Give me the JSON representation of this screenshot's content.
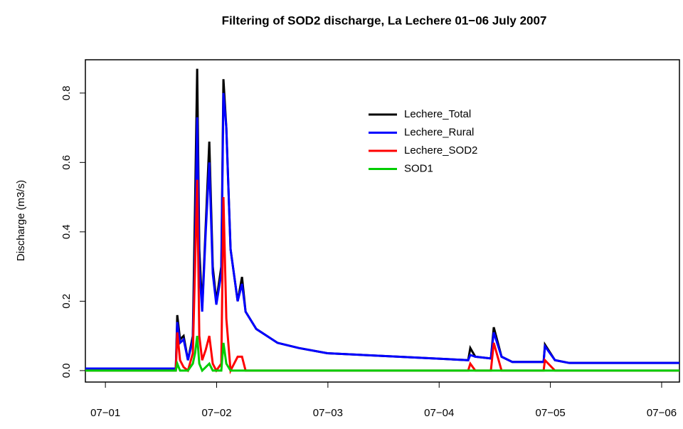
{
  "chart_data": {
    "type": "line",
    "title": "Filtering of SOD2 discharge, La Lechere 01−06 July 2007",
    "y_label": "Discharge (m3/s)",
    "x": [
      -0.18,
      0.633,
      0.646,
      0.671,
      0.703,
      0.742,
      0.786,
      0.806,
      0.825,
      0.844,
      0.87,
      0.902,
      0.934,
      0.965,
      0.997,
      1.042,
      1.061,
      1.087,
      1.125,
      1.189,
      1.228,
      1.26,
      1.356,
      1.547,
      1.739,
      1.995,
      2.634,
      3.261,
      3.28,
      3.325,
      3.465,
      3.491,
      3.561,
      3.657,
      3.939,
      3.951,
      4.041,
      4.169,
      5.16
    ],
    "series": [
      {
        "name": "Lechere_Total",
        "color": "#000000",
        "values": [
          0.006,
          0.006,
          0.16,
          0.09,
          0.1,
          0.03,
          0.1,
          0.48,
          0.87,
          0.35,
          0.18,
          0.42,
          0.66,
          0.3,
          0.2,
          0.3,
          0.84,
          0.7,
          0.35,
          0.2,
          0.27,
          0.17,
          0.12,
          0.08,
          0.065,
          0.05,
          0.04,
          0.03,
          0.065,
          0.04,
          0.035,
          0.125,
          0.04,
          0.025,
          0.025,
          0.075,
          0.03,
          0.022,
          0.022
        ]
      },
      {
        "name": "Lechere_Rural",
        "color": "#0000ff",
        "values": [
          0.006,
          0.006,
          0.14,
          0.08,
          0.09,
          0.03,
          0.09,
          0.35,
          0.73,
          0.3,
          0.17,
          0.4,
          0.6,
          0.28,
          0.19,
          0.28,
          0.8,
          0.7,
          0.35,
          0.2,
          0.25,
          0.17,
          0.12,
          0.08,
          0.065,
          0.05,
          0.04,
          0.03,
          0.045,
          0.04,
          0.035,
          0.11,
          0.04,
          0.025,
          0.025,
          0.07,
          0.03,
          0.022,
          0.022
        ]
      },
      {
        "name": "Lechere_SOD2",
        "color": "#ff0000",
        "values": [
          0,
          0,
          0.11,
          0.03,
          0.01,
          0,
          0.05,
          0.3,
          0.55,
          0.1,
          0.03,
          0.06,
          0.1,
          0.02,
          0,
          0.02,
          0.5,
          0.15,
          0,
          0.04,
          0.04,
          0,
          0,
          0,
          0,
          0,
          0,
          0,
          0.02,
          0,
          0,
          0.08,
          0,
          0,
          0,
          0.03,
          0,
          0,
          0
        ]
      },
      {
        "name": "SOD1",
        "color": "#00cd00",
        "values": [
          0,
          0,
          0.02,
          0,
          0,
          0,
          0.02,
          0.05,
          0.1,
          0.02,
          0,
          0.01,
          0.02,
          0,
          0,
          0,
          0.08,
          0.02,
          0,
          0,
          0,
          0,
          0,
          0,
          0,
          0,
          0,
          0,
          0,
          0,
          0,
          0,
          0,
          0,
          0,
          0,
          0,
          0,
          0
        ]
      }
    ],
    "xlim": [
      -0.18,
      5.16
    ],
    "xticks": [
      {
        "value": 0,
        "label": "07−01"
      },
      {
        "value": 1,
        "label": "07−02"
      },
      {
        "value": 2,
        "label": "07−03"
      },
      {
        "value": 3,
        "label": "07−04"
      },
      {
        "value": 4,
        "label": "07−05"
      },
      {
        "value": 5,
        "label": "07−06"
      }
    ],
    "ylim": [
      -0.033,
      0.896
    ],
    "yticks": [
      {
        "value": 0,
        "label": "0.0"
      },
      0.2,
      0.4,
      0.6,
      0.8
    ],
    "legend": "top-right"
  }
}
